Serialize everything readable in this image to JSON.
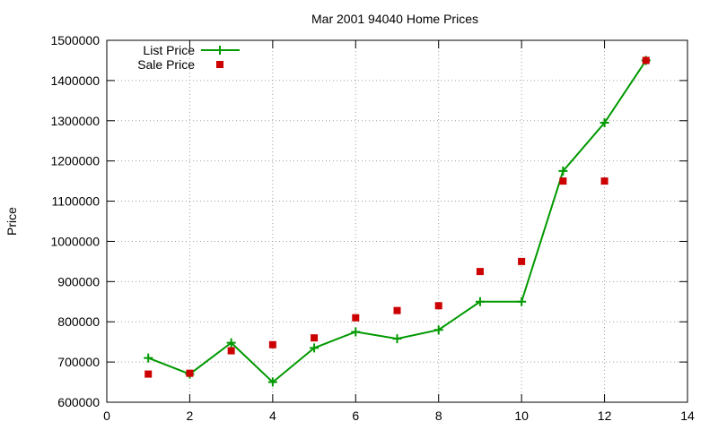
{
  "chart_data": {
    "type": "line",
    "title": "Mar 2001 94040 Home Prices",
    "xlabel": "",
    "ylabel": "Price",
    "xlim": [
      0,
      14
    ],
    "ylim": [
      600000,
      1500000
    ],
    "x_ticks": [
      0,
      2,
      4,
      6,
      8,
      10,
      12,
      14
    ],
    "y_ticks": [
      600000,
      700000,
      800000,
      900000,
      1000000,
      1100000,
      1200000,
      1300000,
      1400000,
      1500000
    ],
    "grid": true,
    "legend_position": "top-left",
    "series": [
      {
        "name": "List Price",
        "style": "lines+points",
        "marker": "plus",
        "color": "#009900",
        "x": [
          1,
          2,
          3,
          4,
          5,
          6,
          7,
          8,
          9,
          10,
          11,
          12,
          13
        ],
        "y": [
          710000,
          670000,
          748000,
          650000,
          735000,
          775000,
          758000,
          780000,
          850000,
          850000,
          1175000,
          1295000,
          1450000
        ]
      },
      {
        "name": "Sale Price",
        "style": "points",
        "marker": "square",
        "color": "#cc0000",
        "x": [
          1,
          2,
          3,
          4,
          5,
          6,
          7,
          8,
          9,
          10,
          11,
          12,
          13
        ],
        "y": [
          670000,
          672000,
          728000,
          743000,
          760000,
          810000,
          828000,
          840000,
          925000,
          950000,
          1150000,
          1150000,
          1450000
        ]
      }
    ]
  }
}
